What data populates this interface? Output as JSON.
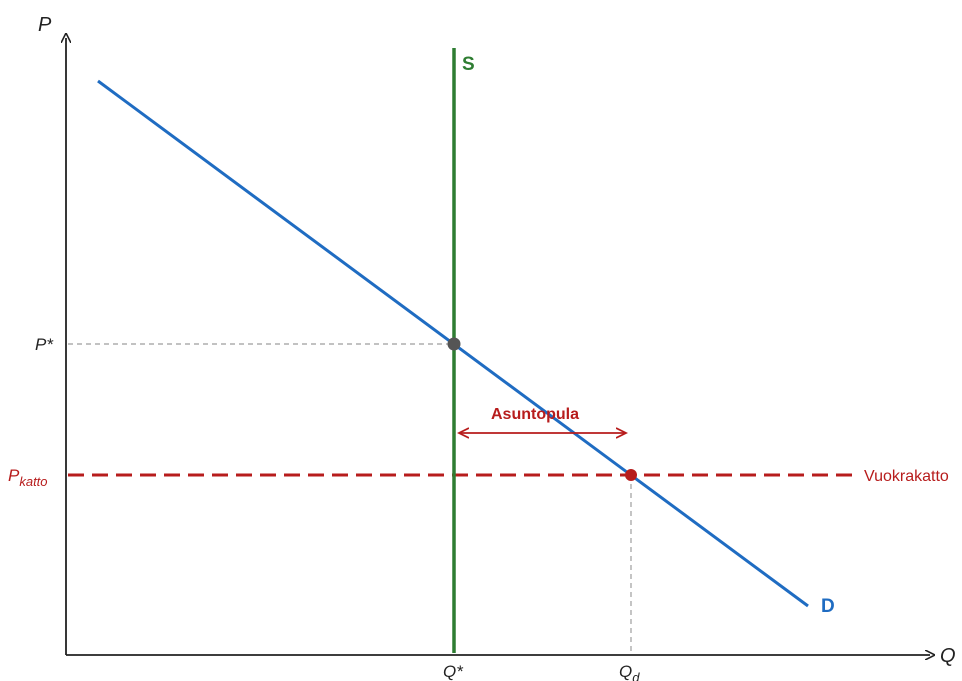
{
  "axes": {
    "y_label": "P",
    "x_label": "Q"
  },
  "ticks": {
    "p_star": "P*",
    "p_ceiling": "P",
    "p_ceiling_sub": "katto",
    "q_star": "Q*",
    "q_d": "Q",
    "q_d_sub": "d"
  },
  "curves": {
    "supply": "S",
    "demand": "D"
  },
  "annotations": {
    "ceiling_line": "Vuokrakatto",
    "shortage": "Asuntopula"
  },
  "colors": {
    "axis": "#222222",
    "supply": "#2e7d32",
    "demand": "#1f6cc2",
    "ceiling": "#b71c1c",
    "equilibrium_point": "#555555",
    "guide": "#9e9e9e"
  }
}
